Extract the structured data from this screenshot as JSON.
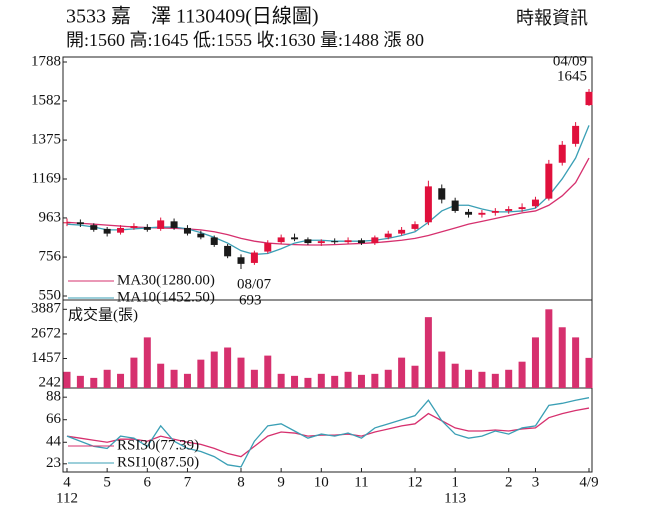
{
  "chart_data": [
    {
      "type": "candlestick",
      "title": "3533 嘉　澤 1130409(日線圖)",
      "subtitle": "開:1560 高:1645 低:1555 收:1630 量:1488 漲 80",
      "source": "時報資訊",
      "annotations": [
        "04/09",
        "08/07"
      ],
      "up_color": "#e0103c",
      "down_color": "#1a1a1a",
      "open": [
        935,
        940,
        925,
        905,
        885,
        910,
        915,
        905,
        945,
        910,
        880,
        860,
        815,
        755,
        725,
        785,
        835,
        860,
        850,
        830,
        840,
        835,
        845,
        830,
        860,
        880,
        905,
        940,
        1120,
        1055,
        995,
        980,
        990,
        1000,
        1010,
        1025,
        1065,
        1255,
        1355,
        1560
      ],
      "high": [
        960,
        955,
        935,
        915,
        925,
        935,
        930,
        965,
        960,
        925,
        895,
        870,
        825,
        770,
        790,
        845,
        875,
        880,
        860,
        850,
        855,
        860,
        855,
        870,
        895,
        915,
        945,
        1160,
        1140,
        1070,
        1010,
        1005,
        1015,
        1025,
        1040,
        1075,
        1270,
        1370,
        1470,
        1645
      ],
      "low": [
        920,
        915,
        890,
        865,
        875,
        900,
        890,
        895,
        900,
        870,
        850,
        810,
        750,
        693,
        715,
        775,
        825,
        840,
        820,
        815,
        825,
        825,
        820,
        820,
        850,
        870,
        895,
        925,
        1040,
        990,
        965,
        965,
        975,
        985,
        995,
        1015,
        1055,
        1240,
        1340,
        1555
      ],
      "close": [
        940,
        930,
        900,
        880,
        910,
        920,
        900,
        950,
        910,
        880,
        860,
        820,
        760,
        720,
        780,
        830,
        860,
        850,
        830,
        840,
        835,
        845,
        830,
        860,
        880,
        900,
        930,
        1130,
        1060,
        1000,
        980,
        990,
        1000,
        1010,
        1020,
        1060,
        1250,
        1350,
        1450,
        1630
      ],
      "series": [
        {
          "name": "MA30(1280.00)",
          "color": "#d6306e",
          "values": [
            940,
            935,
            930,
            925,
            920,
            915,
            912,
            910,
            908,
            905,
            900,
            890,
            875,
            855,
            840,
            830,
            825,
            822,
            820,
            820,
            822,
            825,
            828,
            832,
            838,
            845,
            855,
            870,
            890,
            910,
            930,
            945,
            960,
            975,
            990,
            1000,
            1030,
            1080,
            1150,
            1280
          ]
        },
        {
          "name": "MA10(1452.50)",
          "color": "#3a9fb5",
          "values": [
            930,
            925,
            915,
            900,
            900,
            905,
            910,
            915,
            915,
            905,
            885,
            860,
            830,
            790,
            770,
            775,
            800,
            830,
            845,
            845,
            840,
            840,
            840,
            845,
            855,
            870,
            890,
            940,
            1000,
            1030,
            1030,
            1010,
            995,
            995,
            1000,
            1015,
            1080,
            1170,
            1280,
            1452.5
          ]
        }
      ],
      "ylim": [
        550,
        1788
      ],
      "yticks": [
        550,
        756,
        963,
        1169,
        1375,
        1582,
        1788
      ]
    },
    {
      "type": "bar",
      "title": "成交量(張)",
      "color": "#d6306e",
      "values": [
        800,
        600,
        500,
        900,
        700,
        1500,
        2500,
        1200,
        900,
        700,
        1400,
        1800,
        2000,
        1500,
        900,
        1600,
        700,
        600,
        500,
        700,
        600,
        800,
        650,
        700,
        900,
        1500,
        1100,
        3500,
        1800,
        1200,
        900,
        800,
        700,
        900,
        1300,
        2500,
        3887,
        3000,
        2500,
        1488
      ],
      "ylim": [
        0,
        4100
      ],
      "yticks": [
        242,
        1457,
        2672,
        3887
      ]
    },
    {
      "type": "line",
      "categories": [
        "4",
        null,
        null,
        "5",
        null,
        null,
        "6",
        null,
        null,
        "7",
        null,
        null,
        null,
        "8",
        null,
        null,
        "9",
        null,
        null,
        "10",
        null,
        null,
        "11",
        null,
        null,
        null,
        "12",
        null,
        null,
        "1",
        null,
        null,
        null,
        "2",
        null,
        "3",
        null,
        null,
        null,
        "4/9"
      ],
      "category_years": [
        "112",
        null,
        null,
        null,
        null,
        null,
        null,
        null,
        null,
        null,
        null,
        null,
        null,
        null,
        null,
        null,
        null,
        null,
        null,
        null,
        null,
        null,
        null,
        null,
        null,
        null,
        null,
        null,
        null,
        "113",
        null,
        null,
        null,
        null,
        null,
        null,
        null,
        null,
        null,
        null
      ],
      "series": [
        {
          "name": "RSI30(77.39)",
          "color": "#d6306e",
          "values": [
            50,
            48,
            46,
            44,
            47,
            47,
            45,
            50,
            47,
            44,
            42,
            38,
            33,
            30,
            40,
            50,
            54,
            53,
            50,
            51,
            51,
            52,
            50,
            54,
            57,
            60,
            62,
            72,
            65,
            58,
            55,
            55,
            56,
            55,
            57,
            58,
            68,
            72,
            75,
            77.39
          ]
        },
        {
          "name": "RSI10(87.50)",
          "color": "#3a9fb5",
          "values": [
            50,
            45,
            40,
            38,
            50,
            48,
            40,
            60,
            45,
            38,
            35,
            30,
            22,
            20,
            45,
            60,
            62,
            55,
            48,
            52,
            50,
            53,
            48,
            58,
            62,
            66,
            70,
            85,
            65,
            52,
            48,
            50,
            55,
            52,
            58,
            60,
            80,
            82,
            85,
            87.5
          ]
        }
      ],
      "ylim": [
        15,
        95
      ],
      "yticks": [
        23,
        44,
        66,
        88
      ]
    }
  ]
}
